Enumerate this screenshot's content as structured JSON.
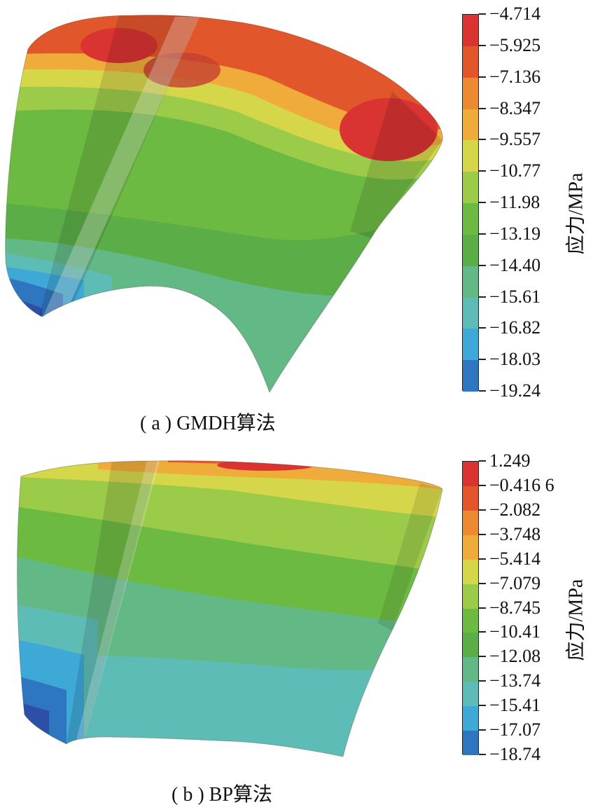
{
  "panels": [
    {
      "caption": "( a ) GMDH算法",
      "unit": "应力/MPa",
      "ticks": [
        "-4.714",
        "-5.925",
        "-7.136",
        "-8.347",
        "-9.557",
        "-10.77",
        "-11.98",
        "-13.19",
        "-14.40",
        "-15.61",
        "-16.82",
        "-18.03",
        "-19.24"
      ]
    },
    {
      "caption": "( b ) BP算法",
      "unit": "应力/MPa",
      "ticks": [
        "1.249",
        "-0.416 6",
        "-2.082",
        "-3.748",
        "-5.414",
        "-7.079",
        "-8.745",
        "-10.41",
        "-12.08",
        "-13.74",
        "-15.41",
        "-17.07",
        "-18.74"
      ]
    }
  ],
  "colormap": [
    "#d93432",
    "#e2562c",
    "#eb8a30",
    "#f0ac3a",
    "#d5d64a",
    "#9ccb4a",
    "#6dba43",
    "#5aad47",
    "#63b986",
    "#5ebcb7",
    "#3ea9d7",
    "#2f76c1",
    "#2d4fa6"
  ]
}
